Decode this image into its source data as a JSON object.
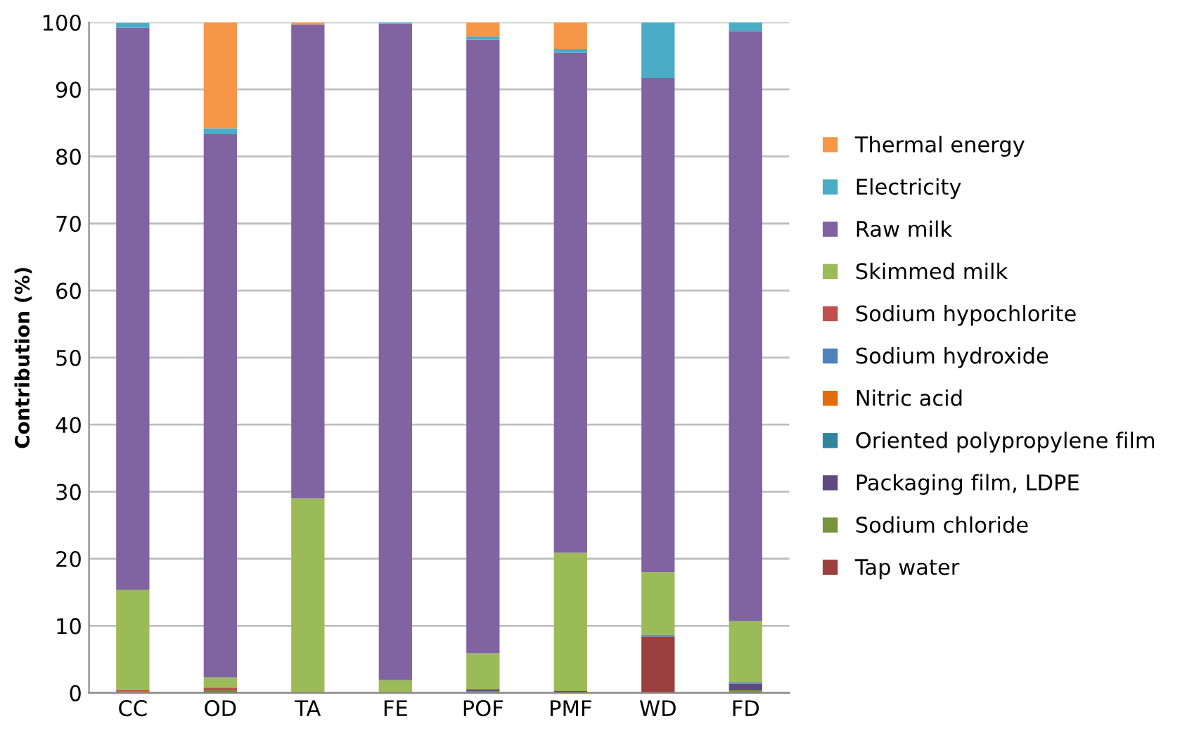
{
  "chart_data": {
    "type": "bar",
    "stacked": true,
    "ylabel": "Contribution (%)",
    "categories": [
      "CC",
      "OD",
      "TA",
      "FE",
      "POF",
      "PMF",
      "WD",
      "FD"
    ],
    "ylim": [
      0,
      100
    ],
    "yticks": [
      0,
      10,
      20,
      30,
      40,
      50,
      60,
      70,
      80,
      90,
      100
    ],
    "grid": "y",
    "legend": "right",
    "series": [
      {
        "name": "Tap water",
        "color": "#9b3f3f",
        "values": [
          0,
          0.2,
          0,
          0,
          0,
          0,
          8.4,
          0
        ]
      },
      {
        "name": "Sodium chloride",
        "color": "#77933c",
        "values": [
          null,
          0.2,
          0,
          0,
          0.3,
          0,
          0,
          0.4
        ]
      },
      {
        "name": "Packaging film, LDPE",
        "color": "#5f4a7f",
        "values": [
          0,
          0.1,
          0,
          0,
          0.2,
          0.3,
          0,
          1.0
        ]
      },
      {
        "name": "Oriented polypropylene film",
        "color": "#31859c",
        "values": [
          0,
          0,
          0,
          0,
          0,
          0,
          0,
          0
        ]
      },
      {
        "name": "Nitric acid",
        "color": "#e46c0a",
        "values": [
          0.3,
          0.1,
          0,
          0,
          0,
          0,
          0,
          0
        ]
      },
      {
        "name": "Sodium hydroxide",
        "color": "#4f81bd",
        "values": [
          0,
          0,
          0,
          0,
          0,
          0,
          0.2,
          0.2
        ]
      },
      {
        "name": "Sodium hypochlorite",
        "color": "#c0504d",
        "values": [
          0.1,
          0.2,
          0,
          0,
          0,
          0,
          0,
          0
        ]
      },
      {
        "name": "Skimmed milk",
        "color": "#9bbb59",
        "values": [
          15.0,
          1.5,
          29.0,
          1.9,
          5.4,
          20.6,
          9.4,
          9.1
        ]
      },
      {
        "name": "Raw milk",
        "color": "#8064a2",
        "values": [
          83.8,
          81.0,
          70.7,
          97.9,
          91.5,
          74.6,
          73.7,
          88.0
        ]
      },
      {
        "name": "Electricity",
        "color": "#4bacc6",
        "values": [
          0.7,
          0.9,
          0,
          0.2,
          0.5,
          0.5,
          8.3,
          1.3
        ]
      },
      {
        "name": "Thermal energy",
        "color": "#f79646",
        "values": [
          0,
          15.8,
          0.3,
          0,
          2.1,
          4.0,
          0,
          0
        ]
      }
    ]
  }
}
